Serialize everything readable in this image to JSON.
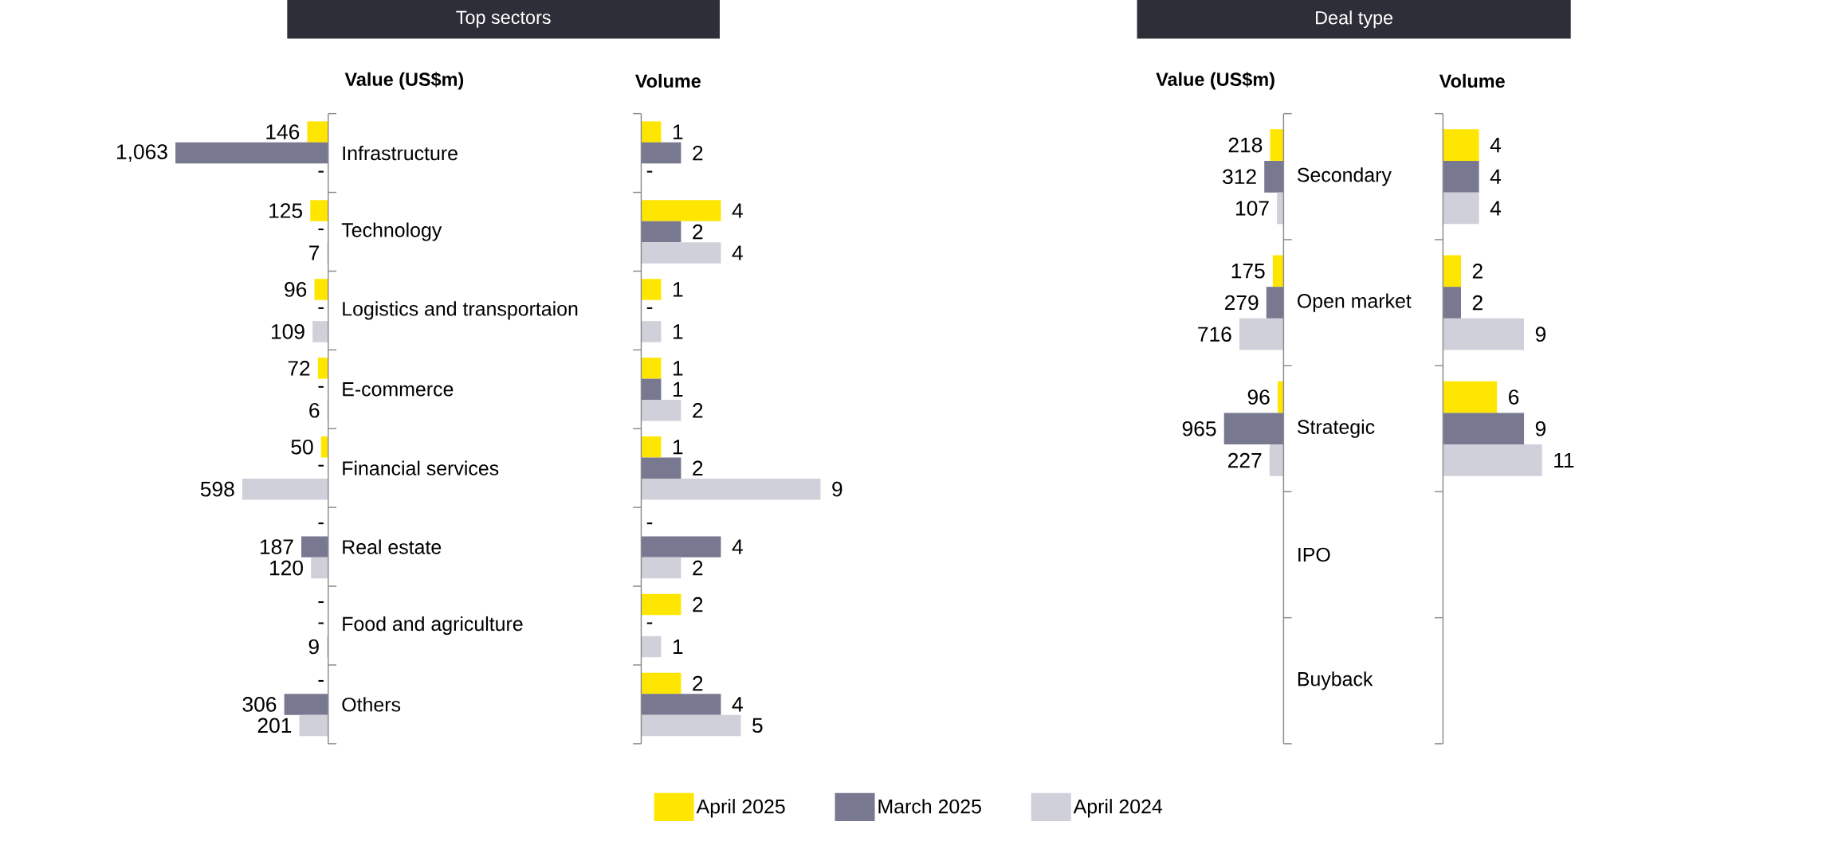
{
  "chart_data": [
    {
      "type": "bar",
      "orientation": "horizontal",
      "title": "Top sectors",
      "subtitle": "Value (US$m)",
      "tick_labels": "y",
      "legend": "bottom",
      "categories": [
        "Infrastructure",
        "Technology",
        "Logistics and transportaion",
        "E-commerce",
        "Financial services",
        "Real estate",
        "Food and agriculture",
        "Others"
      ],
      "series": [
        {
          "name": "April 2025",
          "color": "#ffe600",
          "values": [
            146,
            125,
            96,
            72,
            50,
            null,
            null,
            null
          ],
          "value_labels": [
            "146",
            "125",
            "96",
            "72",
            "50",
            "-",
            "-",
            "-"
          ]
        },
        {
          "name": "March 2025",
          "color": "#787890",
          "values": [
            1063,
            null,
            null,
            null,
            null,
            187,
            null,
            306
          ],
          "value_labels": [
            "1,063",
            "-",
            "-",
            "-",
            "-",
            "187",
            "-",
            "306"
          ]
        },
        {
          "name": "April 2024",
          "color": "#d0d0da",
          "values": [
            null,
            7,
            109,
            6,
            598,
            120,
            9,
            201
          ],
          "value_labels": [
            "-",
            "7",
            "109",
            "6",
            "598",
            "120",
            "9",
            "201"
          ]
        }
      ]
    },
    {
      "type": "bar",
      "orientation": "horizontal",
      "title": "Volume",
      "categories": [
        null,
        null,
        null,
        null,
        null,
        null,
        null,
        null
      ],
      "series": [
        {
          "color": "#ffe600",
          "values": [
            1,
            4,
            1,
            1,
            1,
            null,
            2,
            2
          ],
          "value_labels": [
            "1",
            "4",
            "1",
            "1",
            "1",
            "-",
            "2",
            "2"
          ]
        },
        {
          "color": "#787890",
          "values": [
            2,
            2,
            null,
            1,
            2,
            4,
            null,
            4
          ],
          "value_labels": [
            "2",
            "2",
            "-",
            "1",
            "2",
            "4",
            "-",
            "4"
          ]
        },
        {
          "color": "#d0d0da",
          "values": [
            null,
            4,
            1,
            2,
            9,
            2,
            1,
            5
          ],
          "value_labels": [
            "-",
            "4",
            "1",
            "2",
            "9",
            "2",
            "1",
            "5"
          ]
        }
      ]
    },
    {
      "type": "bar",
      "orientation": "horizontal",
      "title": "Deal type",
      "subtitle": "Value (US$m)",
      "tick_labels": "y",
      "categories": [
        "Secondary",
        "Open market",
        "Strategic",
        "IPO",
        "Buyback"
      ],
      "series": [
        {
          "color": "#ffe600",
          "values": [
            218,
            175,
            96,
            null,
            null
          ],
          "value_labels": [
            "218",
            "175",
            "96",
            null,
            null
          ]
        },
        {
          "color": "#787890",
          "values": [
            312,
            279,
            965,
            null,
            null
          ],
          "value_labels": [
            "312",
            "279",
            "965",
            null,
            null
          ]
        },
        {
          "color": "#d0d0da",
          "values": [
            107,
            716,
            227,
            null,
            null
          ],
          "value_labels": [
            "107",
            "716",
            "227",
            null,
            null
          ]
        }
      ]
    },
    {
      "type": "bar",
      "orientation": "horizontal",
      "title": "Volume",
      "categories": [
        null,
        null,
        null,
        null,
        null
      ],
      "series": [
        {
          "color": "#ffe600",
          "values": [
            4,
            2,
            6,
            null,
            null
          ],
          "value_labels": [
            "4",
            "2",
            "6",
            null,
            null
          ]
        },
        {
          "color": "#787890",
          "values": [
            4,
            2,
            9,
            null,
            null
          ],
          "value_labels": [
            "4",
            "2",
            "9",
            null,
            null
          ]
        },
        {
          "color": "#d0d0da",
          "values": [
            4,
            9,
            11,
            null,
            null
          ],
          "value_labels": [
            "4",
            "9",
            "11",
            null,
            null
          ]
        }
      ]
    }
  ]
}
